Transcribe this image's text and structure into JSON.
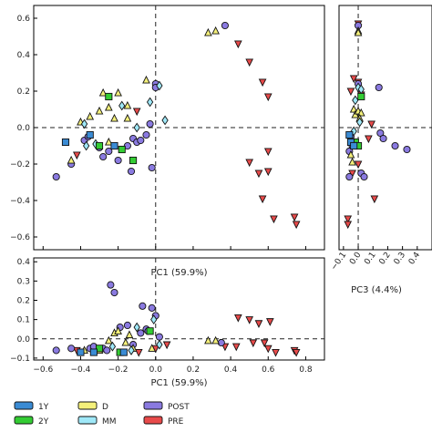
{
  "chart_data": [
    {
      "panel": "main",
      "type": "scatter",
      "xlabel": "PC1 (59.9%)",
      "ylabel": "",
      "xlim": [
        -0.65,
        0.9
      ],
      "ylim": [
        -0.67,
        0.67
      ],
      "xticks": [
        "−0.6",
        "−0.4",
        "−0.2",
        "0.0",
        "0.2",
        "0.4",
        "0.6",
        "0.8"
      ],
      "yticks": [
        "−0.6",
        "−0.4",
        "−0.2",
        "0.0",
        "0.2",
        "0.4",
        "0.6"
      ],
      "grid": false,
      "reference_lines": "dashed at x=0 and y=0",
      "series": [
        {
          "name": "1Y",
          "points": [
            [
              -0.48,
              -0.08
            ],
            [
              -0.35,
              -0.04
            ],
            [
              -0.22,
              -0.1
            ]
          ]
        },
        {
          "name": "2Y",
          "points": [
            [
              -0.25,
              0.17
            ],
            [
              -0.3,
              -0.1
            ],
            [
              -0.18,
              -0.12
            ],
            [
              -0.12,
              -0.18
            ]
          ]
        },
        {
          "name": "D",
          "points": [
            [
              -0.45,
              -0.18
            ],
            [
              -0.4,
              0.03
            ],
            [
              -0.35,
              0.06
            ],
            [
              -0.3,
              0.09
            ],
            [
              -0.28,
              0.19
            ],
            [
              -0.25,
              0.11
            ],
            [
              -0.22,
              0.05
            ],
            [
              -0.2,
              0.19
            ],
            [
              -0.15,
              0.12
            ],
            [
              -0.05,
              0.26
            ],
            [
              -0.25,
              -0.08
            ],
            [
              -0.15,
              0.05
            ],
            [
              0.28,
              0.52
            ],
            [
              0.32,
              0.53
            ]
          ]
        },
        {
          "name": "MM",
          "points": [
            [
              -0.38,
              0.02
            ],
            [
              -0.32,
              -0.09
            ],
            [
              -0.18,
              0.12
            ],
            [
              -0.1,
              0.0
            ],
            [
              0.02,
              0.23
            ],
            [
              -0.03,
              0.14
            ],
            [
              0.05,
              0.04
            ],
            [
              -0.37,
              -0.1
            ]
          ]
        },
        {
          "name": "POST",
          "points": [
            [
              -0.53,
              -0.27
            ],
            [
              -0.45,
              -0.2
            ],
            [
              -0.38,
              -0.07
            ],
            [
              -0.36,
              -0.05
            ],
            [
              -0.3,
              -0.11
            ],
            [
              -0.28,
              -0.16
            ],
            [
              -0.25,
              -0.13
            ],
            [
              -0.2,
              -0.18
            ],
            [
              -0.15,
              -0.1
            ],
            [
              -0.13,
              -0.24
            ],
            [
              -0.12,
              -0.06
            ],
            [
              -0.1,
              -0.08
            ],
            [
              -0.08,
              -0.07
            ],
            [
              -0.05,
              -0.04
            ],
            [
              -0.03,
              0.02
            ],
            [
              -0.02,
              -0.22
            ],
            [
              0.0,
              0.24
            ],
            [
              0.0,
              0.22
            ],
            [
              0.37,
              0.56
            ]
          ]
        },
        {
          "name": "PRE",
          "points": [
            [
              -0.42,
              -0.15
            ],
            [
              -0.1,
              0.09
            ],
            [
              0.44,
              0.46
            ],
            [
              0.5,
              0.36
            ],
            [
              0.57,
              0.25
            ],
            [
              0.6,
              0.17
            ],
            [
              0.6,
              -0.13
            ],
            [
              0.5,
              -0.19
            ],
            [
              0.55,
              -0.25
            ],
            [
              0.6,
              -0.24
            ],
            [
              0.57,
              -0.39
            ],
            [
              0.63,
              -0.5
            ],
            [
              0.74,
              -0.49
            ],
            [
              0.75,
              -0.53
            ]
          ]
        }
      ]
    },
    {
      "panel": "right",
      "type": "scatter",
      "xlabel": "PC3 (4.4%)",
      "xlim": [
        -0.13,
        0.5
      ],
      "ylim": [
        -0.67,
        0.67
      ],
      "xticks": [
        "−0.1",
        "0.0",
        "0.1",
        "0.2",
        "0.3",
        "0.4"
      ],
      "grid": false,
      "reference_lines": "dashed at x=0 and y=0",
      "series": [
        {
          "name": "1Y",
          "points": [
            [
              -0.06,
              -0.04
            ],
            [
              -0.05,
              -0.08
            ],
            [
              -0.03,
              -0.1
            ]
          ]
        },
        {
          "name": "2Y",
          "points": [
            [
              0.02,
              0.17
            ],
            [
              -0.02,
              -0.08
            ],
            [
              0.0,
              -0.1
            ]
          ]
        },
        {
          "name": "D",
          "points": [
            [
              0.0,
              0.53
            ],
            [
              0.0,
              0.52
            ],
            [
              -0.03,
              0.1
            ],
            [
              -0.02,
              0.07
            ],
            [
              0.0,
              0.09
            ],
            [
              0.02,
              0.08
            ],
            [
              0.01,
              0.05
            ],
            [
              -0.05,
              -0.15
            ],
            [
              -0.04,
              -0.19
            ]
          ]
        },
        {
          "name": "MM",
          "points": [
            [
              0.0,
              0.22
            ],
            [
              0.02,
              0.21
            ],
            [
              -0.02,
              0.15
            ],
            [
              0.01,
              0.03
            ],
            [
              -0.03,
              -0.02
            ]
          ]
        },
        {
          "name": "POST",
          "points": [
            [
              0.14,
              0.22
            ],
            [
              0.15,
              -0.03
            ],
            [
              0.17,
              -0.06
            ],
            [
              0.25,
              -0.1
            ],
            [
              0.33,
              -0.12
            ],
            [
              0.02,
              -0.25
            ],
            [
              0.04,
              -0.27
            ],
            [
              -0.06,
              -0.27
            ],
            [
              -0.05,
              -0.05
            ],
            [
              -0.04,
              -0.1
            ],
            [
              -0.06,
              -0.13
            ],
            [
              0.0,
              0.24
            ],
            [
              0.0,
              0.56
            ]
          ]
        },
        {
          "name": "PRE",
          "points": [
            [
              -0.05,
              0.2
            ],
            [
              0.0,
              0.57
            ],
            [
              0.0,
              0.55
            ],
            [
              0.0,
              0.25
            ],
            [
              0.02,
              0.18
            ],
            [
              -0.03,
              0.27
            ],
            [
              0.09,
              0.02
            ],
            [
              0.07,
              -0.06
            ],
            [
              0.11,
              -0.39
            ],
            [
              -0.07,
              -0.5
            ],
            [
              -0.07,
              -0.53
            ],
            [
              -0.04,
              -0.25
            ],
            [
              0.0,
              -0.2
            ]
          ]
        }
      ]
    },
    {
      "panel": "bottom",
      "type": "scatter",
      "xlabel": "PC1 (59.9%)",
      "xlim": [
        -0.65,
        0.9
      ],
      "ylim": [
        -0.11,
        0.42
      ],
      "xticks": [
        "−0.6",
        "−0.4",
        "−0.2",
        "0.0",
        "0.2",
        "0.4",
        "0.6",
        "0.8"
      ],
      "yticks": [
        "−0.1",
        "0.0",
        "0.1",
        "0.2",
        "0.3",
        "0.4"
      ],
      "grid": false,
      "reference_lines": "dashed at x=0 and y=0",
      "series": [
        {
          "name": "1Y",
          "points": [
            [
              -0.4,
              -0.07
            ],
            [
              -0.33,
              -0.07
            ],
            [
              -0.17,
              -0.07
            ]
          ]
        },
        {
          "name": "2Y",
          "points": [
            [
              -0.3,
              -0.05
            ],
            [
              -0.19,
              -0.07
            ],
            [
              -0.03,
              0.04
            ]
          ]
        },
        {
          "name": "D",
          "points": [
            [
              -0.38,
              -0.06
            ],
            [
              -0.3,
              -0.06
            ],
            [
              -0.25,
              -0.01
            ],
            [
              -0.22,
              0.03
            ],
            [
              -0.2,
              0.04
            ],
            [
              -0.16,
              -0.02
            ],
            [
              -0.14,
              0.02
            ],
            [
              -0.12,
              -0.05
            ],
            [
              -0.02,
              -0.05
            ],
            [
              0.28,
              -0.01
            ],
            [
              0.32,
              -0.01
            ]
          ]
        },
        {
          "name": "MM",
          "points": [
            [
              -0.23,
              -0.04
            ],
            [
              -0.13,
              -0.06
            ],
            [
              -0.1,
              0.06
            ],
            [
              0.02,
              -0.03
            ],
            [
              -0.01,
              0.1
            ]
          ]
        },
        {
          "name": "POST",
          "points": [
            [
              -0.53,
              -0.06
            ],
            [
              -0.45,
              -0.05
            ],
            [
              -0.35,
              -0.05
            ],
            [
              -0.33,
              -0.04
            ],
            [
              -0.28,
              -0.05
            ],
            [
              -0.26,
              -0.06
            ],
            [
              -0.24,
              0.28
            ],
            [
              -0.22,
              0.24
            ],
            [
              -0.19,
              0.06
            ],
            [
              -0.15,
              0.07
            ],
            [
              -0.12,
              -0.03
            ],
            [
              -0.07,
              0.17
            ],
            [
              -0.05,
              0.05
            ],
            [
              -0.04,
              0.04
            ],
            [
              -0.02,
              0.16
            ],
            [
              0.0,
              0.12
            ],
            [
              0.02,
              0.01
            ],
            [
              0.35,
              -0.02
            ],
            [
              -0.08,
              0.03
            ]
          ]
        },
        {
          "name": "PRE",
          "points": [
            [
              -0.42,
              -0.06
            ],
            [
              -0.09,
              -0.07
            ],
            [
              0.0,
              -0.05
            ],
            [
              0.06,
              -0.03
            ],
            [
              0.37,
              -0.04
            ],
            [
              0.43,
              -0.04
            ],
            [
              0.44,
              0.11
            ],
            [
              0.5,
              0.1
            ],
            [
              0.52,
              -0.02
            ],
            [
              0.55,
              0.08
            ],
            [
              0.58,
              -0.02
            ],
            [
              0.6,
              -0.05
            ],
            [
              0.61,
              0.09
            ],
            [
              0.64,
              -0.07
            ],
            [
              0.74,
              -0.06
            ],
            [
              0.75,
              -0.07
            ]
          ]
        }
      ]
    }
  ],
  "legend": {
    "placement": "bottom",
    "items": [
      {
        "label": "1Y",
        "color": "#3a8bd4"
      },
      {
        "label": "2Y",
        "color": "#33cc33"
      },
      {
        "label": "D",
        "color": "#f4f07a"
      },
      {
        "label": "MM",
        "color": "#9fe8f8"
      },
      {
        "label": "POST",
        "color": "#8a7ae0"
      },
      {
        "label": "PRE",
        "color": "#e84a4a"
      }
    ]
  },
  "series_styles": {
    "1Y": {
      "marker": "square",
      "color": "#3a8bd4"
    },
    "2Y": {
      "marker": "square",
      "color": "#33cc33"
    },
    "D": {
      "marker": "triangle-up",
      "color": "#f4f07a"
    },
    "MM": {
      "marker": "diamond",
      "color": "#9fe8f8"
    },
    "POST": {
      "marker": "circle",
      "color": "#8a7ae0"
    },
    "PRE": {
      "marker": "triangle-down",
      "color": "#e84a4a"
    }
  }
}
